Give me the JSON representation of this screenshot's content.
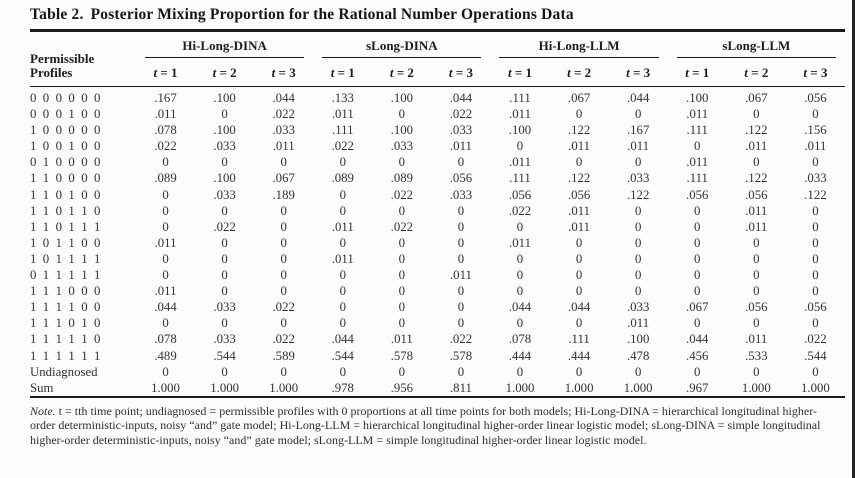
{
  "title": {
    "label": "Table 2.",
    "text": "Posterior Mixing Proportion for the Rational Number Operations Data"
  },
  "table": {
    "row_header": [
      "Permissible",
      "Profiles"
    ],
    "groups": [
      "Hi-Long-DINA",
      "sLong-DINA",
      "Hi-Long-LLM",
      "sLong-LLM"
    ],
    "time_labels": [
      "t = 1",
      "t = 2",
      "t = 3"
    ],
    "rows": [
      {
        "profile": "0 0 0 0 0 0",
        "values": [
          ".167",
          ".100",
          ".044",
          ".133",
          ".100",
          ".044",
          ".111",
          ".067",
          ".044",
          ".100",
          ".067",
          ".056"
        ]
      },
      {
        "profile": "0 0 0 1 0 0",
        "values": [
          ".011",
          "0",
          ".022",
          ".011",
          "0",
          ".022",
          ".011",
          "0",
          "0",
          ".011",
          "0",
          "0"
        ]
      },
      {
        "profile": "1 0 0 0 0 0",
        "values": [
          ".078",
          ".100",
          ".033",
          ".111",
          ".100",
          ".033",
          ".100",
          ".122",
          ".167",
          ".111",
          ".122",
          ".156"
        ]
      },
      {
        "profile": "1 0 0 1 0 0",
        "values": [
          ".022",
          ".033",
          ".011",
          ".022",
          ".033",
          ".011",
          "0",
          ".011",
          ".011",
          "0",
          ".011",
          ".011"
        ]
      },
      {
        "profile": "0 1 0 0 0 0",
        "values": [
          "0",
          "0",
          "0",
          "0",
          "0",
          "0",
          ".011",
          "0",
          "0",
          ".011",
          "0",
          "0"
        ]
      },
      {
        "profile": "1 1 0 0 0 0",
        "values": [
          ".089",
          ".100",
          ".067",
          ".089",
          ".089",
          ".056",
          ".111",
          ".122",
          ".033",
          ".111",
          ".122",
          ".033"
        ]
      },
      {
        "profile": "1 1 0 1 0 0",
        "values": [
          "0",
          ".033",
          ".189",
          "0",
          ".022",
          ".033",
          ".056",
          ".056",
          ".122",
          ".056",
          ".056",
          ".122"
        ]
      },
      {
        "profile": "1 1 0 1 1 0",
        "values": [
          "0",
          "0",
          "0",
          "0",
          "0",
          "0",
          ".022",
          ".011",
          "0",
          "0",
          ".011",
          "0"
        ]
      },
      {
        "profile": "1 1 0 1 1 1",
        "values": [
          "0",
          ".022",
          "0",
          ".011",
          ".022",
          "0",
          "0",
          ".011",
          "0",
          "0",
          ".011",
          "0"
        ]
      },
      {
        "profile": "1 0 1 1 0 0",
        "values": [
          ".011",
          "0",
          "0",
          "0",
          "0",
          "0",
          ".011",
          "0",
          "0",
          "0",
          "0",
          "0"
        ]
      },
      {
        "profile": "1 0 1 1 1 1",
        "values": [
          "0",
          "0",
          "0",
          ".011",
          "0",
          "0",
          "0",
          "0",
          "0",
          "0",
          "0",
          "0"
        ]
      },
      {
        "profile": "0 1 1 1 1 1",
        "values": [
          "0",
          "0",
          "0",
          "0",
          "0",
          ".011",
          "0",
          "0",
          "0",
          "0",
          "0",
          "0"
        ]
      },
      {
        "profile": "1 1 1 0 0 0",
        "values": [
          ".011",
          "0",
          "0",
          "0",
          "0",
          "0",
          "0",
          "0",
          "0",
          "0",
          "0",
          "0"
        ]
      },
      {
        "profile": "1 1 1 1 0 0",
        "values": [
          ".044",
          ".033",
          ".022",
          "0",
          "0",
          "0",
          ".044",
          ".044",
          ".033",
          ".067",
          ".056",
          ".056"
        ]
      },
      {
        "profile": "1 1 1 0 1 0",
        "values": [
          "0",
          "0",
          "0",
          "0",
          "0",
          "0",
          "0",
          "0",
          ".011",
          "0",
          "0",
          "0"
        ]
      },
      {
        "profile": "1 1 1 1 1 0",
        "values": [
          ".078",
          ".033",
          ".022",
          ".044",
          ".011",
          ".022",
          ".078",
          ".111",
          ".100",
          ".044",
          ".011",
          ".022"
        ]
      },
      {
        "profile": "1 1 1 1 1 1",
        "values": [
          ".489",
          ".544",
          ".589",
          ".544",
          ".578",
          ".578",
          ".444",
          ".444",
          ".478",
          ".456",
          ".533",
          ".544"
        ]
      },
      {
        "profile": "Undiagnosed",
        "values": [
          "0",
          "0",
          "0",
          "0",
          "0",
          "0",
          "0",
          "0",
          "0",
          "0",
          "0",
          "0"
        ]
      },
      {
        "profile": "Sum",
        "values": [
          "1.000",
          "1.000",
          "1.000",
          ".978",
          ".956",
          ".811",
          "1.000",
          "1.000",
          "1.000",
          ".967",
          "1.000",
          "1.000"
        ]
      }
    ]
  },
  "note": {
    "lead": "Note.",
    "body": "t = tth time point; undiagnosed = permissible profiles with 0 proportions at all time points for both models; Hi-Long-DINA = hierarchical longitudinal higher-order deterministic-inputs, noisy “and” gate model; Hi-Long-LLM = hierarchical longitudinal higher-order linear logistic model; sLong-DINA = simple longitudinal higher-order deterministic-inputs, noisy “and” gate model; sLong-LLM = simple longitudinal higher-order linear logistic model."
  },
  "colors": {
    "ink": "#1a1a1a",
    "value_ink": "#333333",
    "paper": "#fcfcfc",
    "rule": "#1a1a1a",
    "scan_edge": "#232323"
  }
}
